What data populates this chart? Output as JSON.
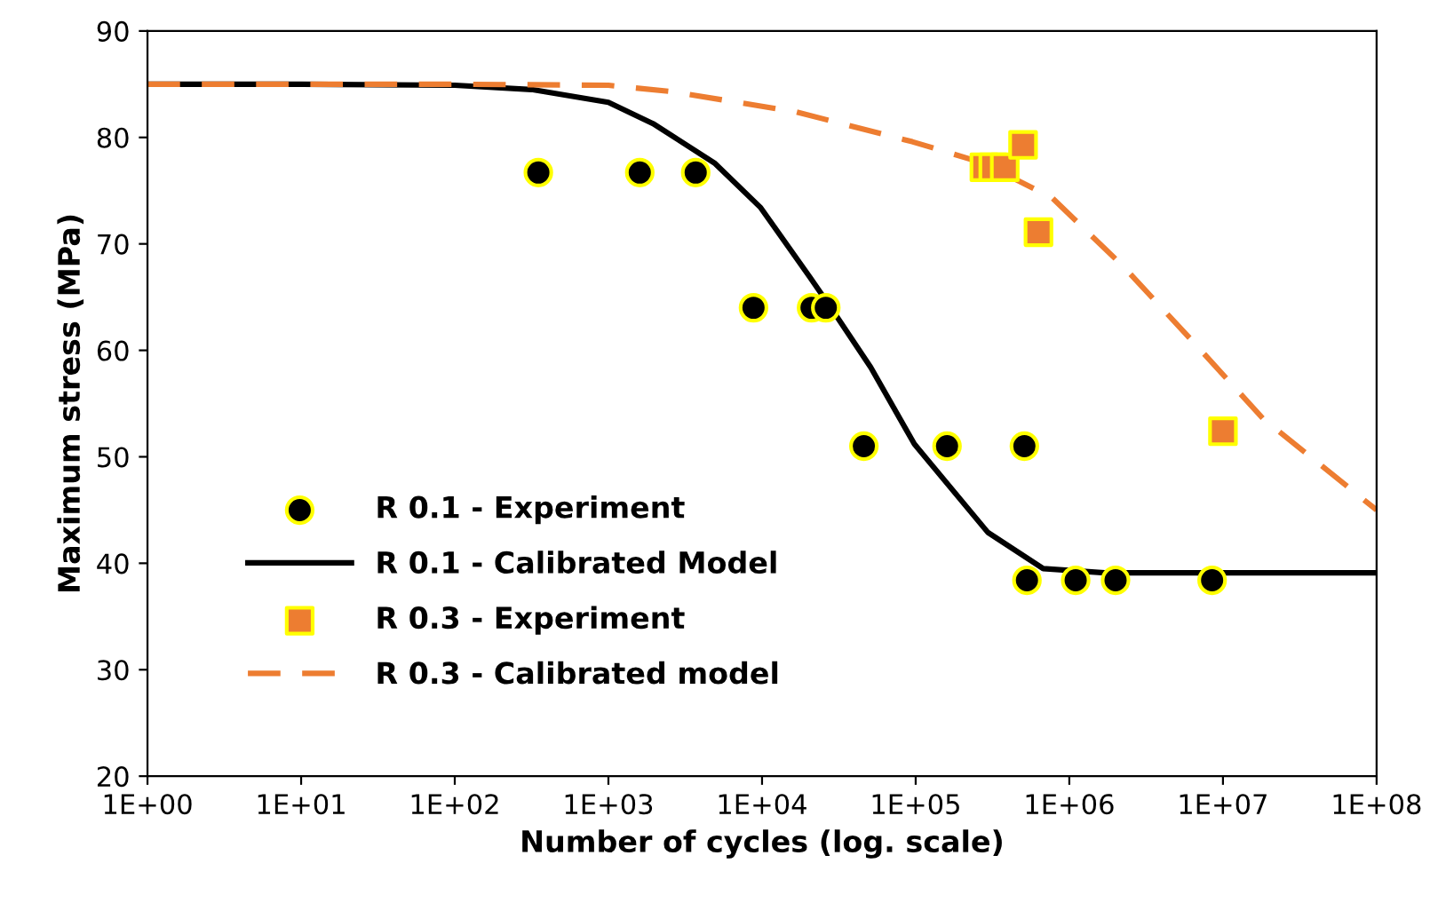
{
  "chart_data": {
    "type": "scatter",
    "xlabel": "Number of cycles (log. scale)",
    "ylabel": "Maximum stress (MPa)",
    "log": "x",
    "grid": false,
    "legend": "bottom left",
    "xlim": [
      1,
      100000000
    ],
    "ylim": [
      20,
      90
    ],
    "xticks": [
      {
        "value": 1,
        "label": "1E+00"
      },
      {
        "value": 10,
        "label": "1E+01"
      },
      {
        "value": 100,
        "label": "1E+02"
      },
      {
        "value": 1000,
        "label": "1E+03"
      },
      {
        "value": 10000,
        "label": "1E+04"
      },
      {
        "value": 100000,
        "label": "1E+05"
      },
      {
        "value": 1000000,
        "label": "1E+06"
      },
      {
        "value": 10000000,
        "label": "1E+07"
      },
      {
        "value": 100000000,
        "label": "1E+08"
      }
    ],
    "yticks": [
      20,
      30,
      40,
      50,
      60,
      70,
      80,
      90
    ],
    "series": [
      {
        "name": "R 0.1 - Experiment",
        "marker": "circle",
        "color": "#000000",
        "x": [
          350,
          1600,
          3700,
          8800,
          21000,
          26000,
          46000,
          160000,
          510000,
          530000,
          1100000,
          2000000,
          8500000
        ],
        "values": [
          76.7,
          76.7,
          76.7,
          64,
          64,
          64,
          51,
          51,
          51,
          38.4,
          38.4,
          38.4,
          38.4
        ]
      },
      {
        "name": "R 0.1 - Calibrated Model",
        "type": "line",
        "line_style": "solid",
        "color": "#000000",
        "x": [
          1,
          10,
          100,
          316,
          1000,
          1950,
          4900,
          9800,
          20400,
          27500,
          51000,
          98000,
          295000,
          676000,
          1700000,
          100000000
        ],
        "values": [
          85,
          85,
          84.9,
          84.5,
          83.3,
          81.3,
          77.6,
          73.4,
          66.9,
          64.2,
          58.4,
          51.2,
          42.9,
          39.5,
          39.1,
          39.1
        ]
      },
      {
        "name": "R 0.3 - Experiment",
        "marker": "square",
        "color": "#ed7d31",
        "x": [
          280000,
          320000,
          380000,
          500000,
          630000,
          10000000
        ],
        "values": [
          77.2,
          77.2,
          77.2,
          79.3,
          71.1,
          52.4
        ]
      },
      {
        "name": "R 0.3 - Calibrated model",
        "type": "line",
        "line_style": "dashed",
        "color": "#ed7d31",
        "x": [
          1,
          10,
          100,
          1000,
          2600,
          16600,
          95000,
          275000,
          776000,
          2240000,
          6300000,
          18200000,
          100000000
        ],
        "values": [
          85,
          85,
          85,
          84.9,
          84.3,
          82.4,
          79.6,
          77.6,
          74.3,
          67.9,
          60.9,
          53.6,
          45
        ]
      }
    ]
  }
}
